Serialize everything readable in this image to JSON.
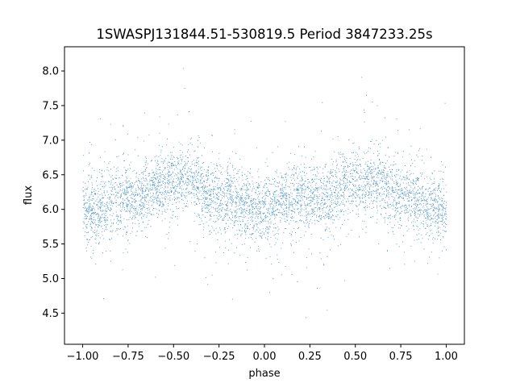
{
  "chart_data": {
    "type": "scatter",
    "title": "1SWASPJ131844.51-530819.5 Period 3847233.25s",
    "xlabel": "phase",
    "ylabel": "flux",
    "xlim": [
      -1.1,
      1.1
    ],
    "ylim": [
      4.05,
      8.35
    ],
    "x_ticks": [
      -1.0,
      -0.75,
      -0.5,
      -0.25,
      0.0,
      0.25,
      0.5,
      0.75,
      1.0
    ],
    "x_tick_labels": [
      "−1.00",
      "−0.75",
      "−0.50",
      "−0.25",
      "0.00",
      "0.25",
      "0.50",
      "0.75",
      "1.00"
    ],
    "y_ticks": [
      4.5,
      5.0,
      5.5,
      6.0,
      6.5,
      7.0,
      7.5,
      8.0
    ],
    "y_tick_labels": [
      "4.5",
      "5.0",
      "5.5",
      "6.0",
      "6.5",
      "7.0",
      "7.5",
      "8.0"
    ],
    "marker_color": "#1f77b4",
    "grid": false,
    "legend": "none",
    "series_profile": {
      "phase": [
        -1.0,
        -0.9,
        -0.8,
        -0.7,
        -0.6,
        -0.5,
        -0.4,
        -0.3,
        -0.2,
        -0.1,
        0.0,
        0.1,
        0.2,
        0.3,
        0.4,
        0.5,
        0.6,
        0.7,
        0.8,
        0.9,
        1.0
      ],
      "flux_median": [
        6.0,
        6.0,
        6.2,
        6.15,
        6.35,
        6.4,
        6.45,
        6.2,
        6.15,
        6.05,
        5.95,
        6.15,
        6.2,
        6.1,
        6.3,
        6.4,
        6.45,
        6.25,
        6.2,
        6.05,
        6.0
      ]
    }
  }
}
